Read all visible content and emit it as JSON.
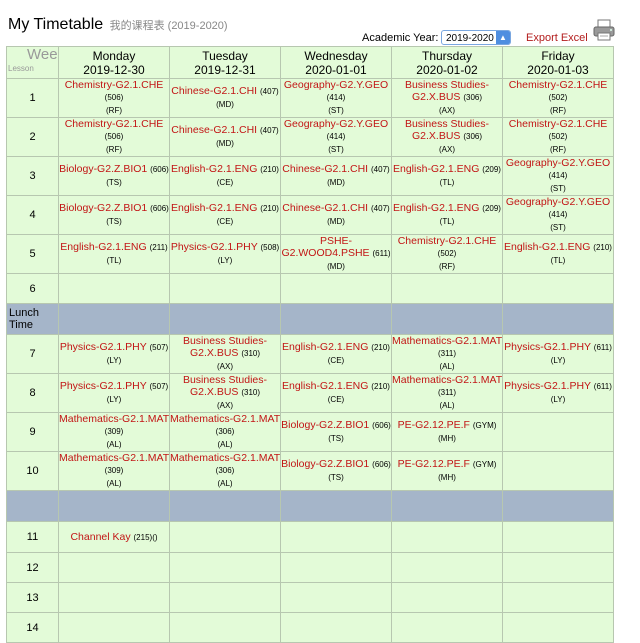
{
  "header": {
    "title": "My Timetable",
    "subtitle": "我的课程表 (2019-2020)",
    "year_label": "Academic Year:",
    "year_value": "2019-2020",
    "export_label": "Export Excel",
    "print_icon": "printer-icon"
  },
  "grid": {
    "corner_weeks": "Weeks",
    "corner_lesson": "Lesson",
    "days": [
      {
        "name": "Monday",
        "date": "2019-12-30"
      },
      {
        "name": "Tuesday",
        "date": "2019-12-31"
      },
      {
        "name": "Wednesday",
        "date": "2020-01-01"
      },
      {
        "name": "Thursday",
        "date": "2020-01-02"
      },
      {
        "name": "Friday",
        "date": "2020-01-03"
      }
    ],
    "lunch_label": "Lunch Time",
    "rows": [
      {
        "type": "lesson",
        "num": "1",
        "cells": [
          {
            "s": "Chemistry-G2.1.CHE",
            "r": "(506)",
            "t": "(RF)"
          },
          {
            "s": "Chinese-G2.1.CHI",
            "r": "(407)",
            "t": "(MD)"
          },
          {
            "s": "Geography-G2.Y.GEO",
            "r": "(414)",
            "t": "(ST)"
          },
          {
            "s": "Business Studies-G2.X.BUS",
            "r": "(306)",
            "t": "(AX)"
          },
          {
            "s": "Chemistry-G2.1.CHE",
            "r": "(502)",
            "t": "(RF)"
          }
        ]
      },
      {
        "type": "lesson",
        "num": "2",
        "cells": [
          {
            "s": "Chemistry-G2.1.CHE",
            "r": "(506)",
            "t": "(RF)"
          },
          {
            "s": "Chinese-G2.1.CHI",
            "r": "(407)",
            "t": "(MD)"
          },
          {
            "s": "Geography-G2.Y.GEO",
            "r": "(414)",
            "t": "(ST)"
          },
          {
            "s": "Business Studies-G2.X.BUS",
            "r": "(306)",
            "t": "(AX)"
          },
          {
            "s": "Chemistry-G2.1.CHE",
            "r": "(502)",
            "t": "(RF)"
          }
        ]
      },
      {
        "type": "lesson",
        "num": "3",
        "cells": [
          {
            "s": "Biology-G2.Z.BIO1",
            "r": "(606)",
            "t": "(TS)"
          },
          {
            "s": "English-G2.1.ENG",
            "r": "(210)",
            "t": "(CE)"
          },
          {
            "s": "Chinese-G2.1.CHI",
            "r": "(407)",
            "t": "(MD)"
          },
          {
            "s": "English-G2.1.ENG",
            "r": "(209)",
            "t": "(TL)"
          },
          {
            "s": "Geography-G2.Y.GEO",
            "r": "(414)",
            "t": "(ST)"
          }
        ]
      },
      {
        "type": "lesson",
        "num": "4",
        "cells": [
          {
            "s": "Biology-G2.Z.BIO1",
            "r": "(606)",
            "t": "(TS)"
          },
          {
            "s": "English-G2.1.ENG",
            "r": "(210)",
            "t": "(CE)"
          },
          {
            "s": "Chinese-G2.1.CHI",
            "r": "(407)",
            "t": "(MD)"
          },
          {
            "s": "English-G2.1.ENG",
            "r": "(209)",
            "t": "(TL)"
          },
          {
            "s": "Geography-G2.Y.GEO",
            "r": "(414)",
            "t": "(ST)"
          }
        ]
      },
      {
        "type": "lesson",
        "num": "5",
        "cells": [
          {
            "s": "English-G2.1.ENG",
            "r": "(211)",
            "t": "(TL)"
          },
          {
            "s": "Physics-G2.1.PHY",
            "r": "(508)",
            "t": "(LY)"
          },
          {
            "s": "PSHE-G2.WOOD4.PSHE",
            "r": "(611)",
            "t": "(MD)"
          },
          {
            "s": "Chemistry-G2.1.CHE",
            "r": "(502)",
            "t": "(RF)"
          },
          {
            "s": "English-G2.1.ENG",
            "r": "(210)",
            "t": "(TL)"
          }
        ]
      },
      {
        "type": "lesson",
        "num": "6",
        "cells": [
          null,
          null,
          null,
          null,
          null
        ]
      },
      {
        "type": "lunch"
      },
      {
        "type": "lesson",
        "num": "7",
        "cells": [
          {
            "s": "Physics-G2.1.PHY",
            "r": "(507)",
            "t": "(LY)"
          },
          {
            "s": "Business Studies-G2.X.BUS",
            "r": "(310)",
            "t": "(AX)"
          },
          {
            "s": "English-G2.1.ENG",
            "r": "(210)",
            "t": "(CE)"
          },
          {
            "s": "Mathematics-G2.1.MAT",
            "r": "(311)",
            "t": "(AL)"
          },
          {
            "s": "Physics-G2.1.PHY",
            "r": "(611)",
            "t": "(LY)"
          }
        ]
      },
      {
        "type": "lesson",
        "num": "8",
        "cells": [
          {
            "s": "Physics-G2.1.PHY",
            "r": "(507)",
            "t": "(LY)"
          },
          {
            "s": "Business Studies-G2.X.BUS",
            "r": "(310)",
            "t": "(AX)"
          },
          {
            "s": "English-G2.1.ENG",
            "r": "(210)",
            "t": "(CE)"
          },
          {
            "s": "Mathematics-G2.1.MAT",
            "r": "(311)",
            "t": "(AL)"
          },
          {
            "s": "Physics-G2.1.PHY",
            "r": "(611)",
            "t": "(LY)"
          }
        ]
      },
      {
        "type": "lesson",
        "num": "9",
        "cells": [
          {
            "s": "Mathematics-G2.1.MAT",
            "r": "(309)",
            "t": "(AL)"
          },
          {
            "s": "Mathematics-G2.1.MAT",
            "r": "(306)",
            "t": "(AL)"
          },
          {
            "s": "Biology-G2.Z.BIO1",
            "r": "(606)",
            "t": "(TS)"
          },
          {
            "s": "PE-G2.12.PE.F",
            "r": "(GYM)",
            "t": "(MH)"
          },
          null
        ]
      },
      {
        "type": "lesson",
        "num": "10",
        "cells": [
          {
            "s": "Mathematics-G2.1.MAT",
            "r": "(309)",
            "t": "(AL)"
          },
          {
            "s": "Mathematics-G2.1.MAT",
            "r": "(306)",
            "t": "(AL)"
          },
          {
            "s": "Biology-G2.Z.BIO1",
            "r": "(606)",
            "t": "(TS)"
          },
          {
            "s": "PE-G2.12.PE.F",
            "r": "(GYM)",
            "t": "(MH)"
          },
          null
        ]
      },
      {
        "type": "band"
      },
      {
        "type": "lesson",
        "num": "11",
        "cells": [
          {
            "s": "Channel Kay",
            "r": "(215)",
            "t": "()",
            "inline": true
          },
          null,
          null,
          null,
          null
        ]
      },
      {
        "type": "lesson",
        "num": "12",
        "cells": [
          null,
          null,
          null,
          null,
          null
        ]
      },
      {
        "type": "lesson",
        "num": "13",
        "cells": [
          null,
          null,
          null,
          null,
          null
        ]
      },
      {
        "type": "lesson",
        "num": "14",
        "cells": [
          null,
          null,
          null,
          null,
          null
        ]
      }
    ]
  }
}
